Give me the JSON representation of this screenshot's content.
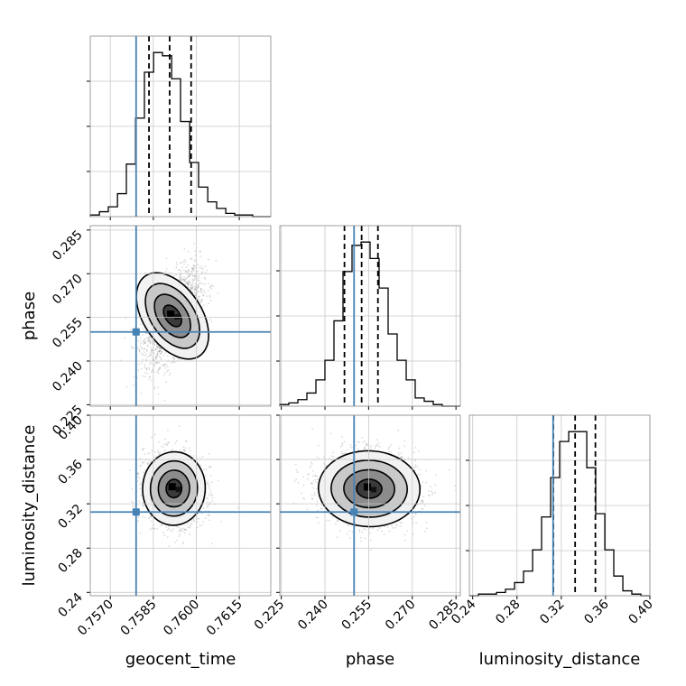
{
  "chart_data": {
    "type": "corner",
    "parameters": [
      {
        "name": "geocent_time",
        "label": "geocent_time",
        "range": [
          0.7563,
          0.7626
        ],
        "ticks": [
          0.757,
          0.7585,
          0.76,
          0.7615
        ],
        "tick_labels": [
          "0.7570",
          "0.7585",
          "0.7600",
          "0.7615"
        ],
        "truth": 0.7579,
        "quantiles": [
          0.75835,
          0.75907,
          0.75982
        ],
        "hist_bins": [
          0.7563,
          0.75662,
          0.75693,
          0.75725,
          0.75756,
          0.75788,
          0.75819,
          0.75851,
          0.75882,
          0.75914,
          0.75945,
          0.75977,
          0.76008,
          0.7604,
          0.76071,
          0.76103,
          0.76134,
          0.76166,
          0.76197,
          0.76229,
          0.7626
        ],
        "hist_values": [
          1,
          3,
          6,
          14,
          32,
          60,
          88,
          100,
          98,
          84,
          58,
          33,
          18,
          9,
          5,
          2,
          1,
          1,
          0,
          0
        ]
      },
      {
        "name": "phase",
        "label": "phase",
        "range": [
          0.2245,
          0.2865
        ],
        "ticks": [
          0.225,
          0.24,
          0.255,
          0.27,
          0.285
        ],
        "tick_labels": [
          "0.225",
          "0.240",
          "0.255",
          "0.270",
          "0.285"
        ],
        "truth": 0.25,
        "quantiles": [
          0.2467,
          0.2526,
          0.2582
        ],
        "hist_bins": [
          0.2245,
          0.2276,
          0.2307,
          0.2338,
          0.2369,
          0.24,
          0.2431,
          0.2462,
          0.2493,
          0.2524,
          0.2555,
          0.2586,
          0.2617,
          0.2648,
          0.2679,
          0.271,
          0.2741,
          0.2772,
          0.2803,
          0.2834,
          0.2865
        ],
        "hist_values": [
          1,
          2,
          4,
          8,
          16,
          28,
          52,
          82,
          98,
          100,
          90,
          72,
          44,
          28,
          16,
          5,
          3,
          1,
          0,
          0
        ]
      },
      {
        "name": "luminosity_distance",
        "label": "luminosity_distance",
        "range": [
          0.237,
          0.4
        ],
        "ticks": [
          0.24,
          0.28,
          0.32,
          0.36,
          0.4
        ],
        "tick_labels": [
          "0.24",
          "0.28",
          "0.32",
          "0.36",
          "0.40"
        ],
        "truth": 0.3126,
        "quantiles": [
          0.3128,
          0.3325,
          0.3508
        ],
        "hist_bins": [
          0.237,
          0.2452,
          0.2533,
          0.2615,
          0.2696,
          0.2778,
          0.2859,
          0.2941,
          0.3022,
          0.3104,
          0.3185,
          0.3267,
          0.3348,
          0.343,
          0.3511,
          0.3593,
          0.3674,
          0.3756,
          0.3837,
          0.3919,
          0.4
        ],
        "hist_values": [
          0,
          1,
          1,
          2,
          4,
          8,
          15,
          28,
          48,
          72,
          94,
          100,
          100,
          78,
          50,
          28,
          12,
          3,
          1,
          0
        ]
      }
    ],
    "pairs": [
      {
        "x": "geocent_time",
        "y": "phase",
        "center": [
          0.75917,
          0.2555
        ],
        "spread": [
          0.00048,
          0.0079
        ],
        "correlation": 0.55
      },
      {
        "x": "geocent_time",
        "y": "luminosity_distance",
        "center": [
          0.75922,
          0.3338
        ],
        "spread": [
          0.00052,
          0.0158
        ],
        "correlation": -0.05
      },
      {
        "x": "phase",
        "y": "luminosity_distance",
        "center": [
          0.2552,
          0.3336
        ],
        "spread": [
          0.0083,
          0.0163
        ],
        "correlation": -0.05
      }
    ],
    "contour_levels_sigma": [
      0.5,
      1.0,
      1.5,
      2.0
    ],
    "truth_color": "#4682b4",
    "line_color": "#000000",
    "grid": true,
    "legend": "none"
  }
}
